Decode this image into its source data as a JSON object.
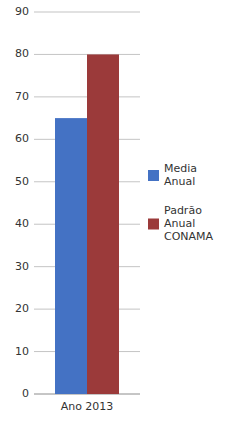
{
  "chart_data": {
    "type": "bar",
    "categories": [
      "Ano 2013"
    ],
    "series": [
      {
        "name": "Media\nAnual",
        "color": "#4472C4",
        "values": [
          65
        ]
      },
      {
        "name": "Padrão\nAnual\nCONAMA",
        "color": "#9B3A3A",
        "values": [
          80
        ]
      }
    ],
    "ylim": [
      0,
      90
    ],
    "yticks": [
      0,
      10,
      20,
      30,
      40,
      50,
      60,
      70,
      80,
      90
    ],
    "grid": true,
    "legend": "right"
  }
}
